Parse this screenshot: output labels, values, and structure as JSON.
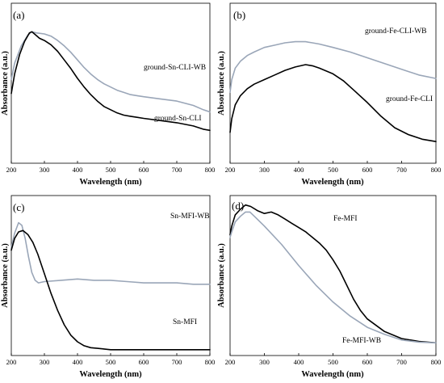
{
  "chart_data": [
    {
      "type": "line",
      "panel_label": "(a)",
      "xlabel": "Wavelength (nm)",
      "ylabel": "Absorbance (a.u.)",
      "xlim": [
        200,
        800
      ],
      "ylim": [
        0,
        1
      ],
      "y_ticks_shown": false,
      "x_ticks": [
        200,
        300,
        400,
        500,
        600,
        700,
        800
      ],
      "grid": false,
      "series": [
        {
          "name": "ground-Sn-CLI-WB",
          "color": "#9aa6b8",
          "x": [
            200,
            210,
            230,
            250,
            262,
            275,
            300,
            320,
            340,
            360,
            380,
            400,
            420,
            440,
            460,
            480,
            500,
            520,
            540,
            560,
            580,
            600,
            650,
            700,
            750,
            780,
            800
          ],
          "y": [
            0.55,
            0.7,
            0.86,
            0.96,
            0.99,
            0.98,
            0.97,
            0.95,
            0.91,
            0.86,
            0.8,
            0.73,
            0.66,
            0.6,
            0.55,
            0.51,
            0.48,
            0.45,
            0.43,
            0.41,
            0.4,
            0.39,
            0.37,
            0.35,
            0.31,
            0.27,
            0.25
          ]
        },
        {
          "name": "ground-Sn-CLI",
          "color": "#000000",
          "x": [
            200,
            210,
            225,
            240,
            255,
            262,
            270,
            285,
            300,
            320,
            340,
            360,
            380,
            400,
            420,
            440,
            460,
            480,
            500,
            520,
            540,
            560,
            580,
            600,
            650,
            700,
            750,
            780,
            800
          ],
          "y": [
            0.42,
            0.6,
            0.78,
            0.9,
            0.98,
            0.99,
            0.97,
            0.93,
            0.91,
            0.87,
            0.81,
            0.73,
            0.65,
            0.56,
            0.48,
            0.41,
            0.35,
            0.3,
            0.27,
            0.24,
            0.22,
            0.21,
            0.2,
            0.19,
            0.17,
            0.15,
            0.12,
            0.09,
            0.08
          ]
        }
      ]
    },
    {
      "type": "line",
      "panel_label": "(b)",
      "xlabel": "Wavelength (nm)",
      "ylabel": "Absorbance (a.u.)",
      "xlim": [
        200,
        800
      ],
      "ylim": [
        0,
        1
      ],
      "y_ticks_shown": false,
      "x_ticks": [
        200,
        300,
        400,
        500,
        600,
        700,
        800
      ],
      "grid": false,
      "series": [
        {
          "name": "ground-Fe-CLI-WB",
          "color": "#9aa6b8",
          "x": [
            200,
            205,
            215,
            230,
            250,
            270,
            300,
            330,
            360,
            390,
            420,
            440,
            460,
            500,
            550,
            600,
            650,
            700,
            750,
            800
          ],
          "y": [
            0.45,
            0.56,
            0.66,
            0.72,
            0.77,
            0.8,
            0.84,
            0.86,
            0.88,
            0.89,
            0.89,
            0.88,
            0.87,
            0.84,
            0.8,
            0.75,
            0.7,
            0.65,
            0.6,
            0.57
          ]
        },
        {
          "name": "ground-Fe-CLI",
          "color": "#000000",
          "x": [
            200,
            205,
            215,
            230,
            250,
            270,
            300,
            330,
            360,
            390,
            420,
            440,
            460,
            500,
            530,
            560,
            600,
            640,
            680,
            720,
            760,
            800
          ],
          "y": [
            0.1,
            0.22,
            0.34,
            0.42,
            0.48,
            0.52,
            0.56,
            0.6,
            0.64,
            0.67,
            0.69,
            0.68,
            0.66,
            0.61,
            0.55,
            0.47,
            0.36,
            0.24,
            0.14,
            0.08,
            0.04,
            0.02
          ]
        }
      ]
    },
    {
      "type": "line",
      "panel_label": "(c)",
      "xlabel": "Wavelength (nm)",
      "ylabel": "Absorbance (a.u.)",
      "xlim": [
        200,
        800
      ],
      "ylim": [
        0,
        1
      ],
      "y_ticks_shown": false,
      "x_ticks": [
        200,
        300,
        400,
        500,
        600,
        700,
        800
      ],
      "grid": false,
      "series": [
        {
          "name": "Sn-MFI-WB",
          "color": "#9aa6b8",
          "x": [
            200,
            210,
            222,
            232,
            242,
            252,
            262,
            272,
            282,
            300,
            350,
            400,
            450,
            500,
            550,
            600,
            650,
            700,
            750,
            800
          ],
          "y": [
            0.8,
            0.91,
            0.99,
            0.97,
            0.87,
            0.73,
            0.61,
            0.55,
            0.53,
            0.54,
            0.55,
            0.56,
            0.55,
            0.55,
            0.54,
            0.53,
            0.53,
            0.53,
            0.52,
            0.52
          ]
        },
        {
          "name": "Sn-MFI",
          "color": "#000000",
          "x": [
            200,
            210,
            222,
            235,
            250,
            265,
            280,
            300,
            320,
            340,
            360,
            380,
            400,
            420,
            440,
            460,
            480,
            500,
            550,
            600,
            650,
            700,
            750,
            800
          ],
          "y": [
            0.78,
            0.87,
            0.92,
            0.93,
            0.9,
            0.84,
            0.75,
            0.6,
            0.45,
            0.32,
            0.21,
            0.13,
            0.08,
            0.05,
            0.035,
            0.03,
            0.025,
            0.02,
            0.02,
            0.02,
            0.02,
            0.02,
            0.02,
            0.02
          ]
        }
      ]
    },
    {
      "type": "line",
      "panel_label": "(d)",
      "xlabel": "Wavelength (nm)",
      "ylabel": "Absorbance (a.u.)",
      "xlim": [
        200,
        800
      ],
      "ylim": [
        0,
        1
      ],
      "y_ticks_shown": false,
      "x_ticks": [
        200,
        300,
        400,
        500,
        600,
        700,
        800
      ],
      "grid": false,
      "series": [
        {
          "name": "Fe-MFI",
          "color": "#000000",
          "x": [
            200,
            205,
            215,
            230,
            245,
            260,
            280,
            300,
            320,
            340,
            360,
            380,
            400,
            420,
            440,
            460,
            480,
            500,
            520,
            540,
            560,
            580,
            600,
            650,
            700,
            750,
            800
          ],
          "y": [
            0.78,
            0.84,
            0.92,
            0.96,
            0.99,
            0.98,
            0.95,
            0.93,
            0.94,
            0.92,
            0.89,
            0.86,
            0.83,
            0.8,
            0.76,
            0.72,
            0.67,
            0.6,
            0.52,
            0.42,
            0.32,
            0.24,
            0.18,
            0.09,
            0.04,
            0.02,
            0.01
          ]
        },
        {
          "name": "Fe-MFI-WB",
          "color": "#9aa6b8",
          "x": [
            200,
            205,
            215,
            230,
            245,
            258,
            275,
            300,
            350,
            400,
            450,
            500,
            550,
            600,
            650,
            700,
            750,
            800
          ],
          "y": [
            0.76,
            0.8,
            0.87,
            0.91,
            0.94,
            0.94,
            0.9,
            0.84,
            0.71,
            0.56,
            0.42,
            0.3,
            0.2,
            0.12,
            0.07,
            0.03,
            0.015,
            0.01
          ]
        }
      ]
    }
  ]
}
